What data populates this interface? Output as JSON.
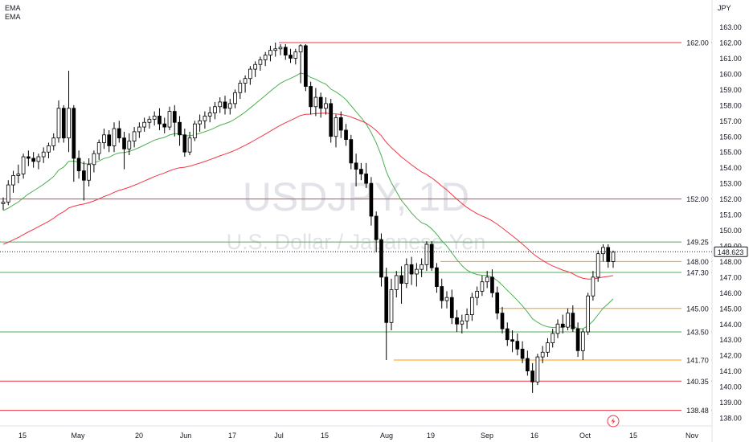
{
  "legend": {
    "ema1": "EMA",
    "ema2": "EMA"
  },
  "axis": {
    "currency": "JPY",
    "price_label": "148.623"
  },
  "watermark": {
    "symbol": "USDJPY, 1D",
    "name": "U.S. Dollar / Japanese Yen"
  },
  "chart_data": {
    "type": "candlestick",
    "symbol": "USDJPY",
    "interval": "1D",
    "ylim": [
      137.5,
      164.0
    ],
    "y_ticks": [
      138.0,
      139.0,
      140.0,
      141.0,
      142.0,
      143.0,
      144.0,
      145.0,
      146.0,
      147.0,
      148.0,
      149.0,
      150.0,
      151.0,
      152.0,
      153.0,
      154.0,
      155.0,
      156.0,
      157.0,
      158.0,
      159.0,
      160.0,
      161.0,
      162.0,
      163.0
    ],
    "x_ticks": [
      "15",
      "May",
      "20",
      "Jun",
      "17",
      "Jul",
      "15",
      "Aug",
      "19",
      "Sep",
      "16",
      "Oct",
      "15",
      "Nov"
    ],
    "last_price": 148.623,
    "levels": [
      {
        "label": "162.00",
        "value": 162.0,
        "color": "#f23645"
      },
      {
        "label": "152.00",
        "value": 152.0,
        "color": "#f23645"
      },
      {
        "label": "149.25",
        "value": 149.25,
        "color": "#4caf50"
      },
      {
        "label": "148.00",
        "value": 148.0,
        "color": "#ff9800"
      },
      {
        "label": "147.30",
        "value": 147.3,
        "color": "#4caf50"
      },
      {
        "label": "145.00",
        "value": 145.0,
        "color": "#ff9800"
      },
      {
        "label": "143.50",
        "value": 143.5,
        "color": "#4caf50"
      },
      {
        "label": "141.70",
        "value": 141.7,
        "color": "#ff9800"
      },
      {
        "label": "140.35",
        "value": 140.35,
        "color": "#f23645"
      },
      {
        "label": "138.48",
        "value": 138.48,
        "color": "#f23645"
      }
    ],
    "ema_fast_color": "#4caf50",
    "ema_slow_color": "#f23645",
    "candle_up_color": "#ffffff",
    "candle_down_color": "#000000",
    "candles_approx": [
      [
        151.7,
        152.1,
        151.3,
        151.8
      ],
      [
        151.8,
        153.2,
        151.6,
        152.9
      ],
      [
        152.9,
        153.8,
        152.4,
        153.5
      ],
      [
        153.5,
        154.2,
        153.0,
        153.6
      ],
      [
        153.6,
        154.9,
        153.3,
        154.7
      ],
      [
        154.7,
        155.1,
        154.1,
        154.6
      ],
      [
        154.6,
        155.0,
        154.0,
        154.4
      ],
      [
        154.4,
        154.9,
        153.9,
        154.7
      ],
      [
        154.7,
        155.3,
        154.3,
        155.0
      ],
      [
        155.0,
        155.6,
        154.6,
        155.4
      ],
      [
        155.4,
        156.2,
        155.1,
        155.9
      ],
      [
        155.9,
        158.3,
        155.6,
        157.8
      ],
      [
        157.8,
        158.0,
        155.6,
        155.9
      ],
      [
        155.9,
        160.2,
        155.0,
        157.8
      ],
      [
        157.8,
        158.0,
        153.1,
        154.6
      ],
      [
        154.6,
        155.1,
        153.3,
        153.8
      ],
      [
        153.8,
        154.4,
        151.9,
        153.2
      ],
      [
        153.2,
        154.6,
        152.8,
        154.2
      ],
      [
        154.2,
        155.1,
        153.7,
        154.9
      ],
      [
        154.9,
        155.8,
        154.5,
        155.6
      ],
      [
        155.6,
        156.5,
        155.2,
        156.1
      ],
      [
        156.1,
        156.4,
        155.0,
        155.4
      ],
      [
        155.4,
        156.9,
        155.0,
        156.5
      ],
      [
        156.5,
        157.0,
        155.6,
        155.9
      ],
      [
        155.9,
        156.3,
        153.9,
        155.2
      ],
      [
        155.2,
        156.2,
        154.8,
        155.7
      ],
      [
        155.7,
        156.6,
        155.3,
        156.3
      ],
      [
        156.3,
        156.9,
        155.9,
        156.6
      ],
      [
        156.6,
        157.2,
        156.3,
        156.9
      ],
      [
        156.9,
        157.3,
        156.5,
        157.1
      ],
      [
        157.1,
        157.6,
        156.7,
        157.3
      ],
      [
        157.3,
        157.8,
        156.4,
        156.8
      ],
      [
        156.8,
        157.2,
        156.2,
        156.6
      ],
      [
        156.6,
        157.9,
        156.4,
        157.6
      ],
      [
        157.6,
        158.0,
        156.0,
        156.9
      ],
      [
        156.9,
        157.3,
        155.4,
        156.1
      ],
      [
        156.1,
        156.5,
        154.7,
        155.0
      ],
      [
        155.0,
        156.3,
        154.8,
        155.9
      ],
      [
        155.9,
        157.0,
        155.7,
        156.8
      ],
      [
        156.8,
        157.4,
        156.3,
        157.0
      ],
      [
        157.0,
        157.6,
        156.5,
        157.3
      ],
      [
        157.3,
        157.9,
        156.9,
        157.5
      ],
      [
        157.5,
        158.2,
        157.1,
        157.9
      ],
      [
        157.9,
        158.5,
        157.5,
        158.2
      ],
      [
        158.2,
        158.6,
        157.4,
        157.8
      ],
      [
        157.8,
        158.4,
        157.4,
        158.1
      ],
      [
        158.1,
        159.0,
        157.8,
        158.8
      ],
      [
        158.8,
        159.6,
        158.4,
        159.4
      ],
      [
        159.4,
        159.9,
        158.8,
        159.7
      ],
      [
        159.7,
        160.5,
        159.3,
        160.3
      ],
      [
        160.3,
        160.8,
        159.8,
        160.6
      ],
      [
        160.6,
        161.1,
        160.2,
        160.9
      ],
      [
        160.9,
        161.4,
        160.5,
        161.2
      ],
      [
        161.2,
        161.8,
        160.8,
        161.5
      ],
      [
        161.5,
        162.0,
        161.1,
        161.6
      ],
      [
        161.6,
        161.9,
        161.2,
        161.7
      ],
      [
        161.7,
        161.9,
        160.9,
        161.2
      ],
      [
        161.2,
        161.6,
        160.7,
        161.0
      ],
      [
        161.0,
        161.6,
        160.6,
        161.4
      ],
      [
        161.4,
        161.9,
        159.4,
        161.8
      ],
      [
        161.8,
        161.9,
        158.9,
        159.2
      ],
      [
        159.2,
        159.5,
        157.4,
        157.9
      ],
      [
        157.9,
        159.1,
        157.3,
        158.5
      ],
      [
        158.5,
        158.8,
        157.2,
        157.8
      ],
      [
        157.8,
        158.5,
        157.4,
        158.1
      ],
      [
        158.1,
        158.4,
        155.6,
        156.0
      ],
      [
        156.0,
        157.4,
        155.3,
        157.2
      ],
      [
        157.2,
        157.6,
        155.9,
        156.4
      ],
      [
        156.4,
        156.8,
        155.4,
        155.8
      ],
      [
        155.8,
        156.1,
        153.9,
        154.3
      ],
      [
        154.3,
        154.9,
        152.8,
        153.9
      ],
      [
        153.9,
        154.3,
        153.2,
        153.6
      ],
      [
        153.6,
        154.3,
        152.7,
        153.0
      ],
      [
        153.0,
        153.4,
        150.3,
        150.9
      ],
      [
        150.9,
        151.2,
        148.6,
        149.4
      ],
      [
        149.4,
        149.8,
        146.4,
        147.0
      ],
      [
        147.0,
        147.6,
        141.7,
        144.1
      ],
      [
        144.1,
        146.9,
        143.6,
        146.2
      ],
      [
        146.2,
        147.4,
        145.7,
        147.1
      ],
      [
        147.1,
        147.7,
        145.3,
        146.6
      ],
      [
        146.6,
        148.2,
        146.3,
        147.8
      ],
      [
        147.8,
        148.3,
        146.5,
        147.2
      ],
      [
        147.2,
        147.9,
        146.4,
        147.5
      ],
      [
        147.5,
        148.2,
        147.0,
        147.8
      ],
      [
        147.8,
        149.3,
        147.4,
        149.1
      ],
      [
        149.1,
        149.3,
        147.4,
        147.6
      ],
      [
        147.6,
        147.9,
        146.0,
        146.4
      ],
      [
        146.4,
        146.9,
        145.0,
        145.5
      ],
      [
        145.5,
        146.1,
        145.0,
        145.7
      ],
      [
        145.7,
        146.2,
        144.0,
        144.4
      ],
      [
        144.4,
        144.9,
        143.5,
        144.0
      ],
      [
        144.0,
        144.6,
        143.4,
        144.2
      ],
      [
        144.2,
        145.0,
        143.7,
        144.6
      ],
      [
        144.6,
        146.0,
        144.2,
        145.7
      ],
      [
        145.7,
        146.4,
        145.2,
        146.1
      ],
      [
        146.1,
        147.1,
        145.8,
        146.7
      ],
      [
        146.7,
        147.4,
        146.3,
        147.0
      ],
      [
        147.0,
        147.5,
        145.7,
        146.0
      ],
      [
        146.0,
        146.4,
        144.3,
        144.7
      ],
      [
        144.7,
        145.1,
        143.4,
        143.7
      ],
      [
        143.7,
        144.1,
        142.6,
        143.0
      ],
      [
        143.0,
        143.6,
        142.2,
        142.9
      ],
      [
        142.9,
        143.4,
        142.0,
        142.4
      ],
      [
        142.4,
        142.9,
        141.5,
        141.8
      ],
      [
        141.8,
        142.3,
        140.7,
        141.0
      ],
      [
        141.0,
        141.5,
        139.6,
        140.3
      ],
      [
        140.3,
        142.1,
        140.1,
        141.9
      ],
      [
        141.9,
        142.6,
        141.5,
        142.2
      ],
      [
        142.2,
        143.1,
        141.9,
        142.8
      ],
      [
        142.8,
        143.7,
        142.5,
        143.4
      ],
      [
        143.4,
        144.3,
        143.1,
        144.0
      ],
      [
        144.0,
        144.6,
        143.4,
        143.8
      ],
      [
        143.8,
        145.0,
        143.6,
        144.7
      ],
      [
        144.7,
        145.2,
        143.5,
        143.7
      ],
      [
        143.7,
        144.1,
        141.9,
        142.3
      ],
      [
        142.3,
        143.7,
        141.7,
        143.5
      ],
      [
        143.5,
        146.0,
        143.3,
        145.8
      ],
      [
        145.8,
        147.4,
        145.5,
        147.0
      ],
      [
        147.0,
        148.7,
        146.7,
        148.5
      ],
      [
        148.5,
        149.1,
        148.0,
        148.9
      ],
      [
        148.9,
        149.1,
        147.6,
        148.0
      ],
      [
        148.0,
        148.7,
        147.6,
        148.6
      ]
    ]
  }
}
